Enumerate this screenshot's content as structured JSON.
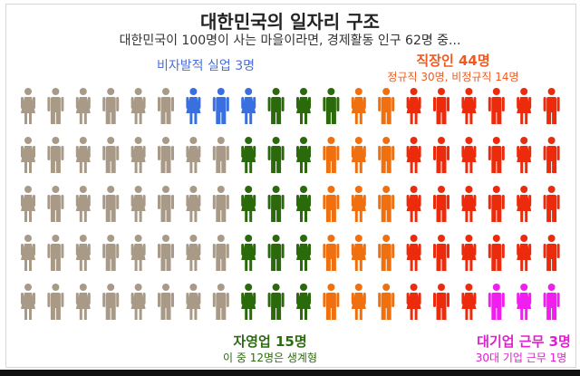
{
  "title": "대한민국의 일자리 구조",
  "subtitle": "대한민국이 100명이 사는 마을이라면, 경제활동 인구 62명 중...",
  "labels": {
    "unemployed": "비자발적 실업 3명",
    "employees": "직장인 44명",
    "employees_sub": "정규직 30명, 비정규직 14명",
    "self_employed": "자영업 15명",
    "self_employed_sub": "이 중 12명은 생계형",
    "large_company": "대기업 근무 3명",
    "large_company_sub": "30대 기업 근무 1명"
  },
  "chart_data": {
    "type": "pictogram",
    "title": "대한민국의 일자리 구조",
    "subtitle": "대한민국이 100명이 사는 마을이라면, 경제활동 인구 62명 중...",
    "total_population": 100,
    "grid": {
      "rows": 5,
      "columns": 20
    },
    "economically_active": 62,
    "colors": {
      "other": "#a89a87",
      "unemployed": "#3a6fe0",
      "self_employed": "#2a6a0a",
      "employees": "#f07010",
      "employees_red": "#ec2b0c",
      "large_company": "#f01ff0"
    },
    "rows": [
      [
        "other",
        "other",
        "other",
        "other",
        "other",
        "other",
        "unemployed",
        "unemployed",
        "unemployed",
        "self_employed",
        "self_employed",
        "self_employed",
        "employees",
        "employees",
        "employees_red",
        "employees_red",
        "employees_red",
        "employees_red",
        "employees_red",
        "employees_red"
      ],
      [
        "other",
        "other",
        "other",
        "other",
        "other",
        "other",
        "other",
        "other",
        "self_employed",
        "self_employed",
        "self_employed",
        "employees",
        "employees",
        "employees",
        "employees_red",
        "employees_red",
        "employees_red",
        "employees_red",
        "employees_red",
        "employees_red"
      ],
      [
        "other",
        "other",
        "other",
        "other",
        "other",
        "other",
        "other",
        "other",
        "self_employed",
        "self_employed",
        "self_employed",
        "employees",
        "employees",
        "employees",
        "employees_red",
        "employees_red",
        "employees_red",
        "employees_red",
        "employees_red",
        "employees_red"
      ],
      [
        "other",
        "other",
        "other",
        "other",
        "other",
        "other",
        "other",
        "other",
        "self_employed",
        "self_employed",
        "self_employed",
        "employees",
        "employees",
        "employees",
        "employees_red",
        "employees_red",
        "employees_red",
        "employees_red",
        "employees_red",
        "employees_red"
      ],
      [
        "other",
        "other",
        "other",
        "other",
        "other",
        "other",
        "other",
        "other",
        "self_employed",
        "self_employed",
        "self_employed",
        "employees",
        "employees",
        "employees",
        "employees_red",
        "employees_red",
        "employees_red",
        "large_company",
        "large_company",
        "large_company"
      ]
    ],
    "figure_gender_pattern": [
      "female",
      "male"
    ],
    "series": [
      {
        "name": "비자발적 실업",
        "value": 3
      },
      {
        "name": "자영업",
        "value": 15
      },
      {
        "name": "직장인",
        "value": 44
      },
      {
        "name": "대기업 근무",
        "value": 3
      }
    ]
  }
}
